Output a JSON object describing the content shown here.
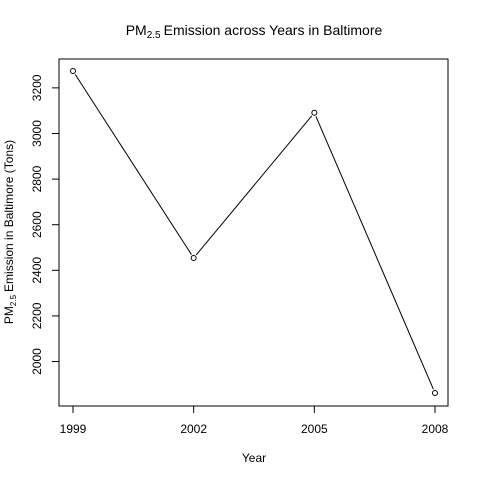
{
  "chart_data": {
    "type": "line",
    "title": "Emission across Years in Baltimore",
    "title_prefix": "PM",
    "title_subscript": "2.5",
    "xlabel": "Year",
    "ylabel": "Emission in Baltimore (Tons)",
    "ylabel_prefix": "PM",
    "ylabel_subscript": "2.5",
    "x": [
      1999,
      2002,
      2005,
      2008
    ],
    "series": [
      {
        "values": [
          3274,
          2454,
          3091,
          1862
        ]
      }
    ],
    "x_ticks": [
      "1999",
      "2002",
      "2005",
      "2008"
    ],
    "y_ticks": [
      "2000",
      "2200",
      "2400",
      "2600",
      "2800",
      "3000",
      "3200"
    ],
    "xlim": [
      1999,
      2008
    ],
    "ylim": [
      1862,
      3274
    ],
    "marker": "open-circle",
    "line_color": "#000000",
    "grid": false,
    "legend": "none"
  }
}
